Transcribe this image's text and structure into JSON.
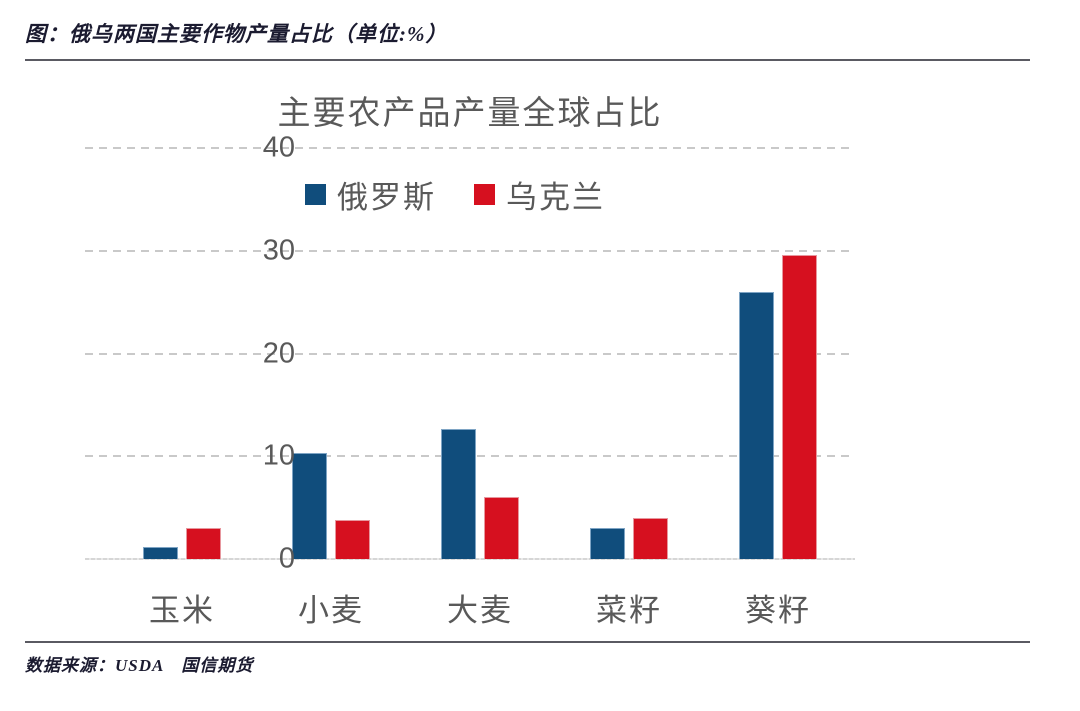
{
  "page": {
    "header_title": "图：俄乌两国主要作物产量占比（单位:%）",
    "footer_source": "数据来源：USDA　国信期货"
  },
  "chart_data": {
    "type": "bar",
    "title": "主要农产品产量全球占比",
    "unit": "%",
    "categories": [
      "玉米",
      "小麦",
      "大麦",
      "菜籽",
      "葵籽"
    ],
    "series": [
      {
        "name": "俄罗斯",
        "color": "#104d7c",
        "values": [
          1.2,
          10.3,
          12.7,
          3.0,
          26.0
        ]
      },
      {
        "name": "乌克兰",
        "color": "#d6101f",
        "values": [
          3.0,
          3.8,
          6.0,
          4.0,
          29.6
        ]
      }
    ],
    "xlabel": "",
    "ylabel": "",
    "ylim": [
      0,
      40
    ],
    "yticks": [
      0,
      10,
      20,
      30,
      40
    ],
    "grid": "horizontal-dashed",
    "legend_position": "top-center",
    "colors": {
      "grid": "#c9c9c9",
      "axis": "#d6d6d6",
      "text": "#595959",
      "header_text": "#1b1b30",
      "rule": "#5a5a62"
    }
  }
}
